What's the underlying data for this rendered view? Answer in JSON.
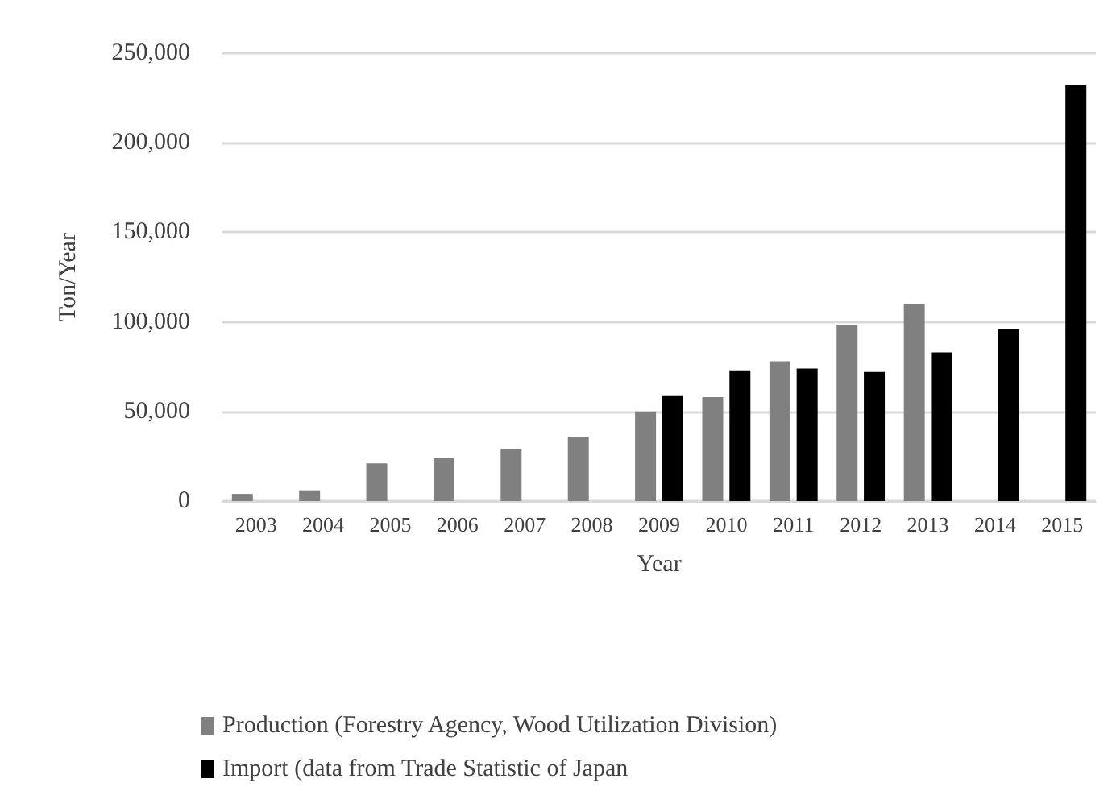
{
  "chart_data": {
    "type": "bar",
    "xlabel": "Year",
    "ylabel": "Ton/Year",
    "categories": [
      "2003",
      "2004",
      "2005",
      "2006",
      "2007",
      "2008",
      "2009",
      "2010",
      "2011",
      "2012",
      "2013",
      "2014",
      "2015"
    ],
    "series": [
      {
        "name": "Production (Forestry Agency, Wood Utilization Division)",
        "color": "#808080",
        "values": [
          4000,
          6000,
          21000,
          24000,
          29000,
          36000,
          50000,
          58000,
          78000,
          98000,
          110000,
          null,
          null
        ]
      },
      {
        "name": "Import (data from Trade Statistic of Japan",
        "color": "#000000",
        "values": [
          null,
          null,
          null,
          null,
          null,
          null,
          59000,
          73000,
          74000,
          72000,
          83000,
          96000,
          232000
        ]
      }
    ],
    "ylim": [
      0,
      250000
    ],
    "yticks": [
      0,
      {
        "value": 50000,
        "label": "50,000"
      },
      {
        "value": 100000,
        "label": "100,000"
      },
      {
        "value": 150000,
        "label": "150,000"
      },
      {
        "value": 200000,
        "label": "200,000"
      },
      {
        "value": 250000,
        "label": "250,000"
      }
    ],
    "grid": "y",
    "legend": "bottom"
  }
}
